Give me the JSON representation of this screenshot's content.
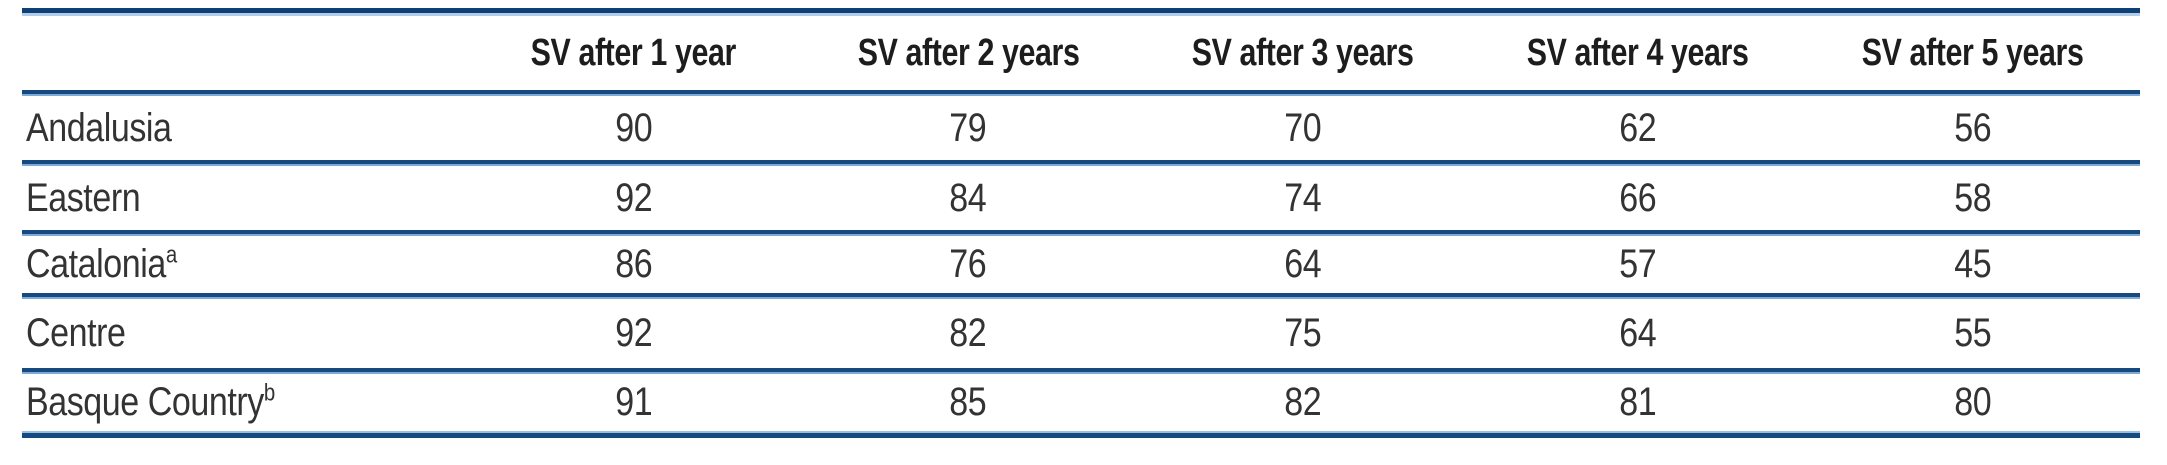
{
  "page": {
    "background": "#ffffff",
    "rule_colors": {
      "dark": "#16497f",
      "light": "#7fa9d6",
      "top_light": "#b3cde9"
    }
  },
  "table": {
    "header": {
      "row_label_column": "",
      "columns": [
        "SV after 1 year",
        "SV after 2 years",
        "SV after 3 years",
        "SV after 4 years",
        "SV after 5 years"
      ]
    },
    "rows": [
      {
        "label": "Andalusia",
        "sup": "",
        "values": [
          90,
          79,
          70,
          62,
          56
        ]
      },
      {
        "label": "Eastern",
        "sup": "",
        "values": [
          92,
          84,
          74,
          66,
          58
        ]
      },
      {
        "label": "Catalonia",
        "sup": "a",
        "values": [
          86,
          76,
          64,
          57,
          45
        ]
      },
      {
        "label": "Centre",
        "sup": "",
        "values": [
          92,
          82,
          75,
          64,
          55
        ]
      },
      {
        "label": "Basque Country",
        "sup": "b",
        "values": [
          91,
          85,
          82,
          81,
          80
        ]
      }
    ]
  },
  "chart_data": {
    "type": "table",
    "title": "",
    "xlabel": "",
    "ylabel": "",
    "categories": [
      "SV after 1 year",
      "SV after 2 years",
      "SV after 3 years",
      "SV after 4 years",
      "SV after 5 years"
    ],
    "series": [
      {
        "name": "Andalusia",
        "values": [
          90,
          79,
          70,
          62,
          56
        ]
      },
      {
        "name": "Eastern",
        "values": [
          92,
          84,
          74,
          66,
          58
        ]
      },
      {
        "name": "Catalonia",
        "values": [
          86,
          76,
          64,
          57,
          45
        ]
      },
      {
        "name": "Centre",
        "values": [
          92,
          82,
          75,
          64,
          55
        ]
      },
      {
        "name": "Basque Country",
        "values": [
          91,
          85,
          82,
          81,
          80
        ]
      }
    ]
  }
}
